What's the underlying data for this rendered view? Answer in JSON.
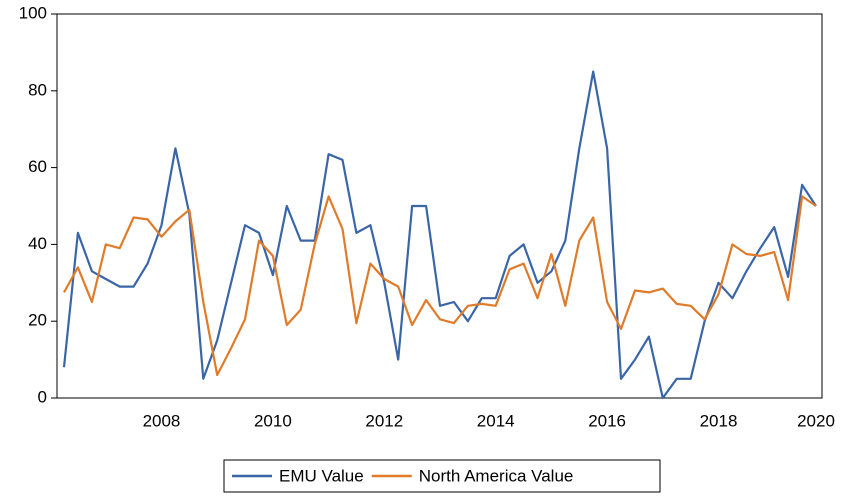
{
  "chart_data": {
    "type": "line",
    "categories": [
      null,
      null,
      null,
      null,
      null,
      null,
      null,
      "2008",
      null,
      null,
      null,
      null,
      null,
      null,
      null,
      "2010",
      null,
      null,
      null,
      null,
      null,
      null,
      null,
      "2012",
      null,
      null,
      null,
      null,
      null,
      null,
      null,
      "2014",
      null,
      null,
      null,
      null,
      null,
      null,
      null,
      "2016",
      null,
      null,
      null,
      null,
      null,
      null,
      null,
      "2018",
      null,
      null,
      null,
      null,
      null,
      null,
      "2020"
    ],
    "series": [
      {
        "name": "EMU Value",
        "color": "#3a66a8",
        "values": [
          8,
          43,
          33,
          31,
          29,
          29,
          35,
          45,
          65,
          48,
          5,
          15,
          30,
          45,
          43,
          32,
          50,
          41,
          41,
          63.5,
          62,
          43,
          45,
          30,
          10,
          50,
          50,
          24,
          25,
          20,
          26,
          26,
          37,
          40,
          30,
          33,
          41,
          65,
          85,
          65,
          5,
          10,
          16,
          0,
          5,
          5,
          20,
          30,
          26,
          33,
          39,
          44.5,
          31.5,
          55.5,
          50
        ]
      },
      {
        "name": "North America Value",
        "color": "#e07b2a",
        "values": [
          27.5,
          34,
          25,
          40,
          39,
          47,
          46.5,
          42,
          46,
          49,
          25,
          6,
          13,
          20.5,
          41,
          37,
          19,
          23,
          40,
          52.5,
          44,
          19.5,
          35,
          31,
          29,
          19,
          25.5,
          20.5,
          19.5,
          24,
          24.5,
          24,
          33.5,
          35,
          26,
          37.5,
          24,
          41,
          47,
          25,
          18,
          28,
          27.5,
          28.5,
          24.5,
          24,
          20.5,
          27,
          40,
          37.5,
          37,
          38,
          25.5,
          52.5,
          50
        ]
      }
    ],
    "ylim": [
      0,
      100
    ],
    "yticks": [
      0,
      20,
      40,
      60,
      80,
      100
    ],
    "grid": false,
    "legend": "bottom"
  }
}
